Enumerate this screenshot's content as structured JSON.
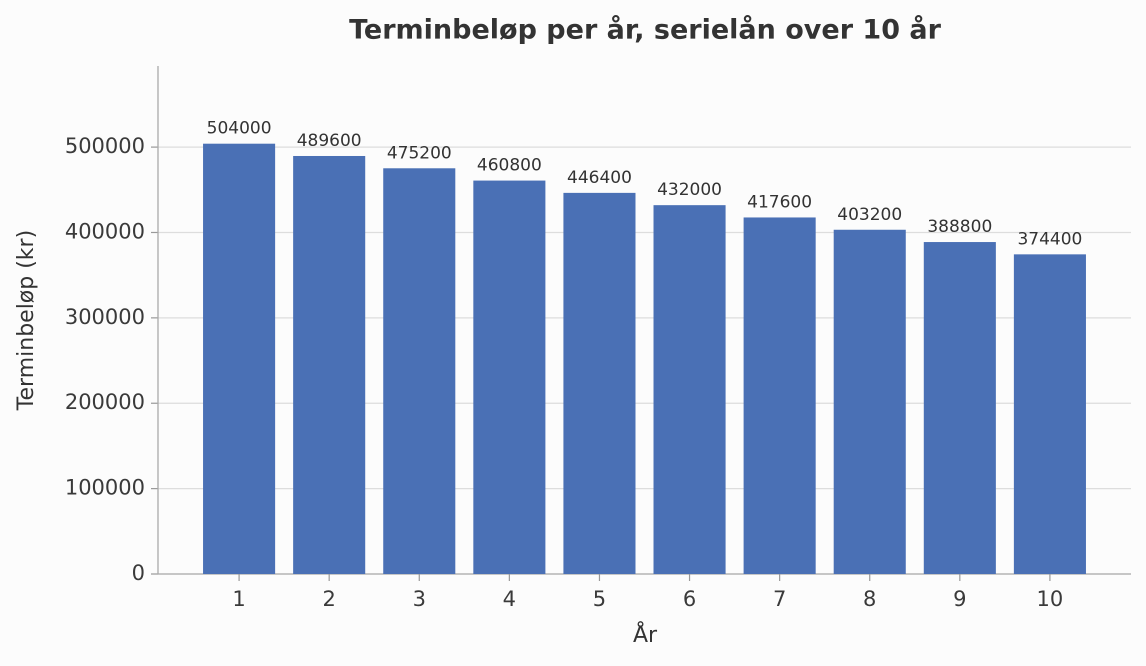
{
  "chart_data": {
    "type": "bar",
    "title": "Terminbeløp per år, serielån over 10 år",
    "x_label": "År",
    "y_label": "Terminbeløp (kr)",
    "categories": [
      "1",
      "2",
      "3",
      "4",
      "5",
      "6",
      "7",
      "8",
      "9",
      "10"
    ],
    "values": [
      504000,
      489600,
      475200,
      460800,
      446400,
      432000,
      417600,
      403200,
      388800,
      374400
    ],
    "color": "#4a70b5",
    "ylim": [
      0,
      595000
    ],
    "yticks": [
      0,
      100000,
      200000,
      300000,
      400000,
      500000
    ],
    "grid": true
  }
}
